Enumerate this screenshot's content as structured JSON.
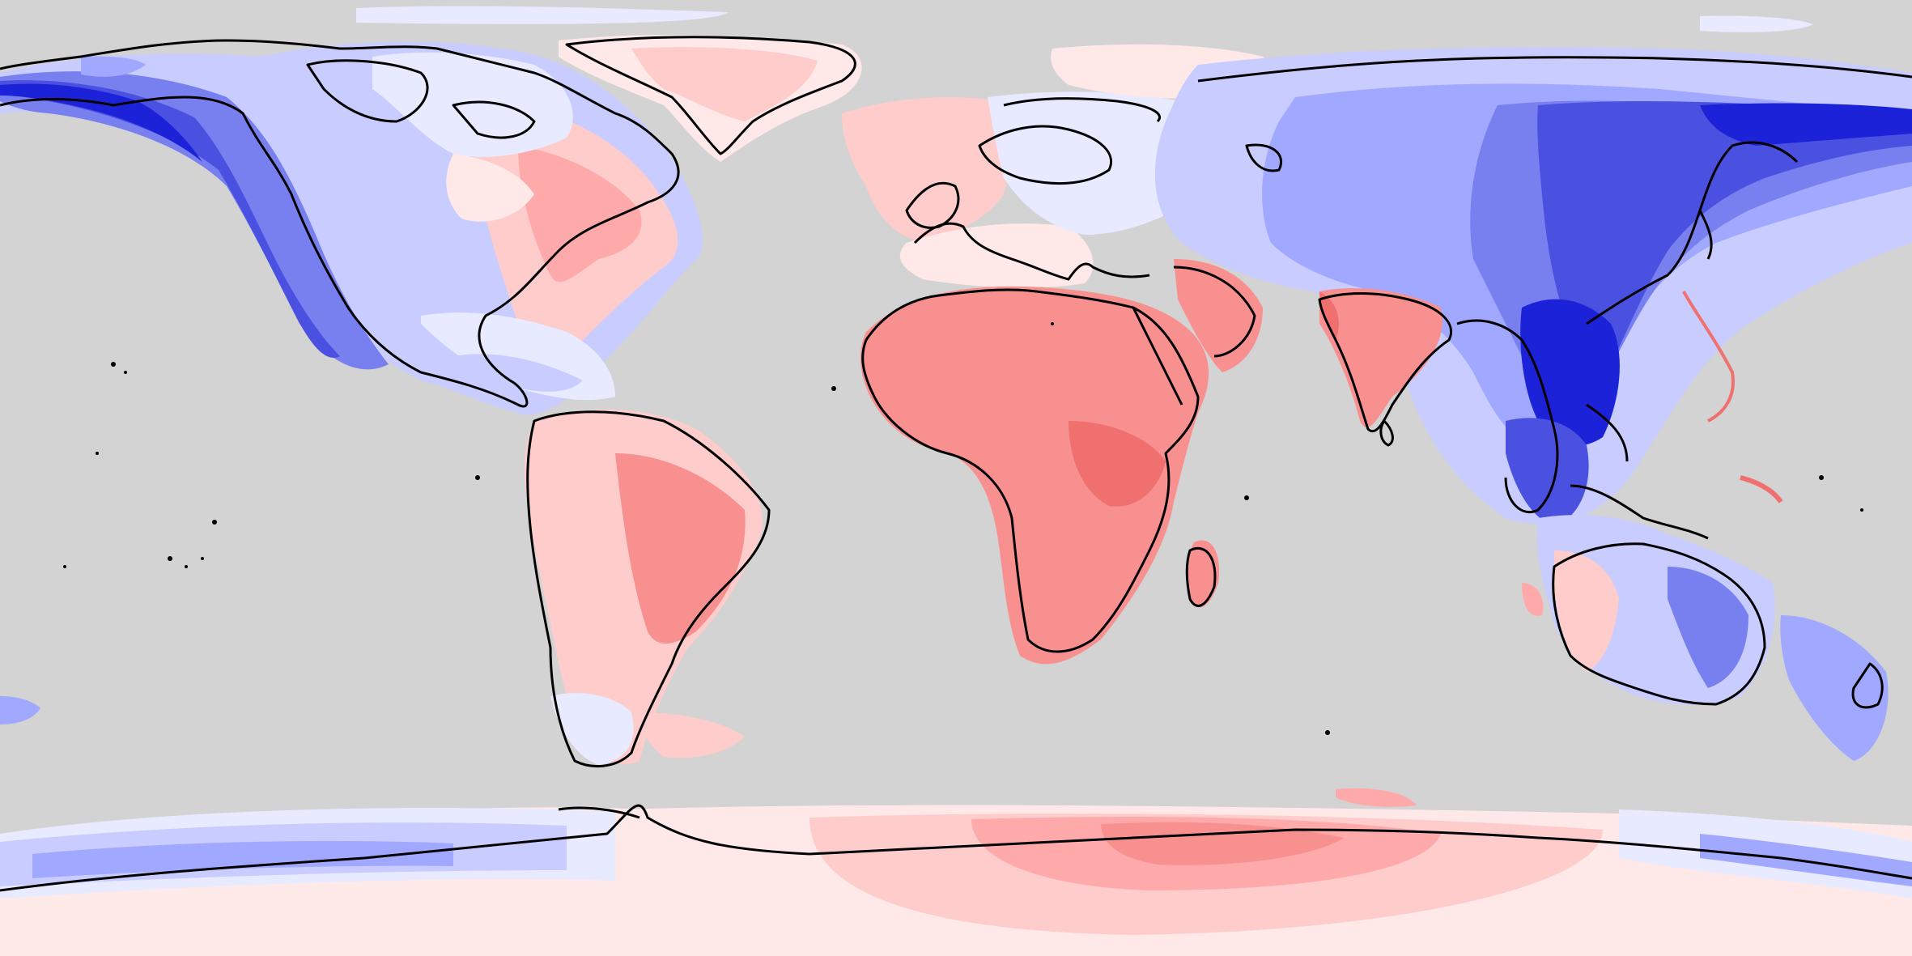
{
  "map": {
    "projection": "equirectangular",
    "background_color": "#d3d3d3",
    "coastline_color": "#000000",
    "color_scale": {
      "type": "diverging",
      "negative_colors": [
        "#e8eaff",
        "#c8ccff",
        "#a0a8ff",
        "#7880f0",
        "#4a50e0",
        "#1c22d8"
      ],
      "positive_colors": [
        "#ffe8e8",
        "#ffcccc",
        "#ffaaaa",
        "#f89090",
        "#f07070"
      ]
    },
    "layers": [
      {
        "name": "ocean",
        "color": "#d3d3d3"
      },
      {
        "name": "negative-anomaly-regions",
        "color": "#4a50e0"
      },
      {
        "name": "positive-anomaly-regions",
        "color": "#f89090"
      },
      {
        "name": "coastlines",
        "color": "#000000"
      }
    ]
  }
}
